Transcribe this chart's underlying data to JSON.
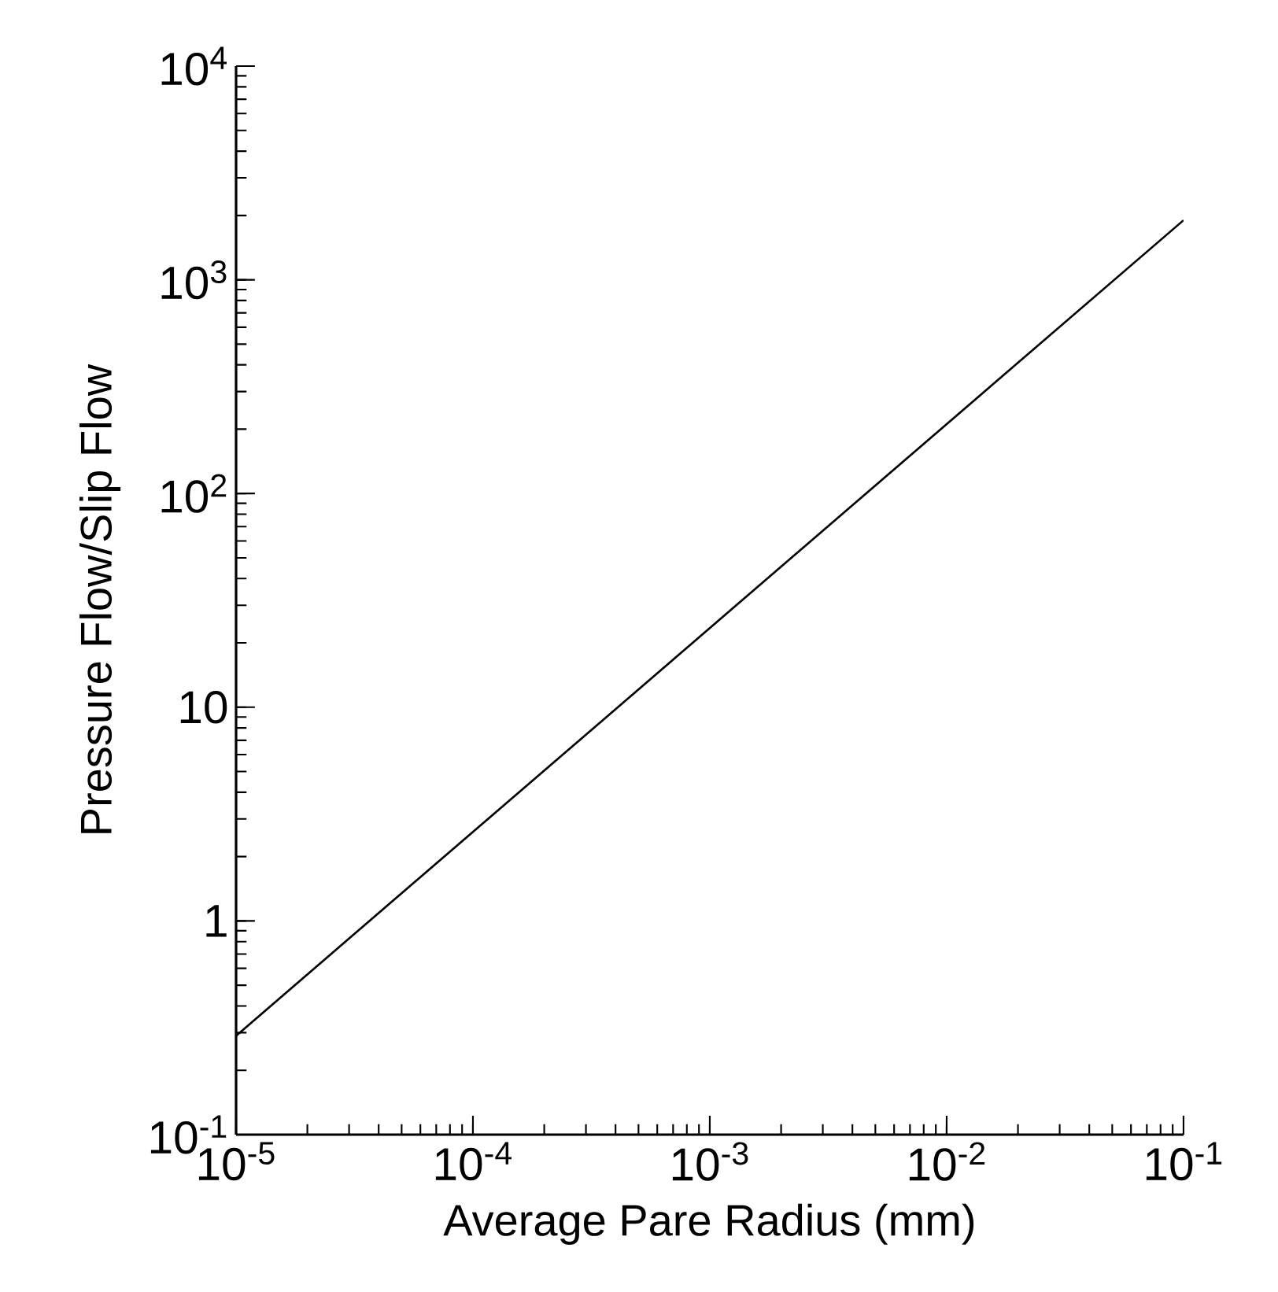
{
  "chart_data": {
    "type": "line",
    "xlabel": "Average Pare Radius (mm)",
    "ylabel": "Pressure Flow/Slip Flow",
    "log": "xy",
    "color": "#000000",
    "x": [
      1e-05,
      0.1
    ],
    "values": [
      0.29,
      1900
    ],
    "xlim": [
      1e-05,
      0.1
    ],
    "ylim": [
      0.1,
      10000
    ],
    "xticks": [
      {
        "value": 1e-05,
        "label": "10$^{-5}$"
      },
      {
        "value": 0.0001,
        "label": "10$^{-4}$"
      },
      {
        "value": 0.001,
        "label": "10$^{-3}$"
      },
      {
        "value": 0.01,
        "label": "10$^{-2}$"
      },
      {
        "value": 0.1,
        "label": "10$^{-1}$"
      }
    ],
    "yticks": [
      {
        "value": 0.1,
        "label": "10$^{-1}$"
      },
      {
        "value": 1,
        "label": "1"
      },
      {
        "value": 10,
        "label": "10"
      },
      {
        "value": 100,
        "label": "10$^{2}$"
      },
      {
        "value": 1000,
        "label": "10$^{3}$"
      },
      {
        "value": 10000,
        "label": "10$^{4}$"
      }
    ],
    "grid": false
  }
}
